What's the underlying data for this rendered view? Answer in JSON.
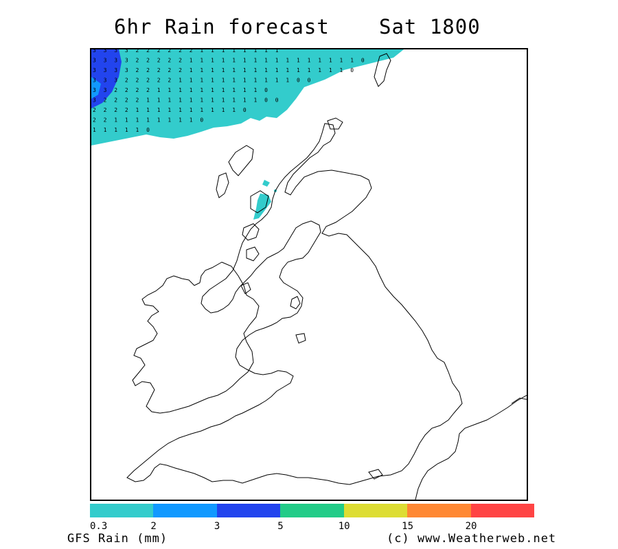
{
  "title": "6hr Rain forecast",
  "valid_time": "Sat 1800",
  "legend": {
    "title": "GFS Rain (mm)",
    "labels": [
      "0.3",
      "2",
      "3",
      "5",
      "10",
      "15",
      "20"
    ],
    "colors": [
      "#33cccc",
      "#1199ff",
      "#2244ee",
      "#22cc88",
      "#dddd33",
      "#ff8833",
      "#ff4444"
    ]
  },
  "credit": "(c) www.Weatherweb.net",
  "map": {
    "region": "British Isles",
    "rain_fill_color": "#33cccc",
    "heavy_rain_color": "#2244ee",
    "rain_grid_rows": [
      "333322222211111111",
      "33332222211111111111111110",
      "3333222221111111111111110",
      "333222221111111111100",
      "33222211111111110",
      "322221111111111100",
      "222211111111110",
      "22111111110",
      "111110"
    ]
  }
}
